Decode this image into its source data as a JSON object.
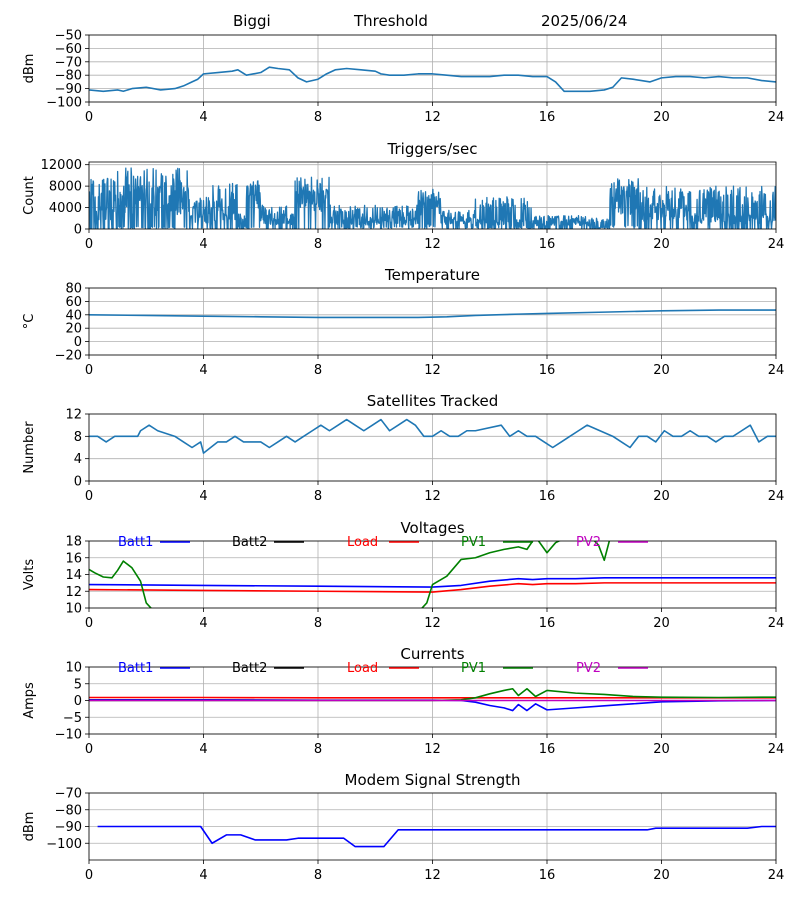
{
  "header": {
    "station": "Biggi",
    "label": "Threshold",
    "date": "2025/06/24"
  },
  "colors": {
    "default_line": "#1f77b4",
    "grid": "#b0b0b0",
    "batt1": "#0000ff",
    "batt2": "#000000",
    "load": "#ff0000",
    "pv1": "#008000",
    "pv2": "#bf00bf"
  },
  "chart_data": [
    {
      "id": "threshold",
      "type": "line",
      "title": "",
      "ylabel": "dBm",
      "xlim": [
        0,
        24
      ],
      "ylim": [
        -100,
        -50
      ],
      "xticks": [
        0,
        4,
        8,
        12,
        16,
        20,
        24
      ],
      "yticks": [
        -100,
        -90,
        -80,
        -70,
        -60,
        -50
      ],
      "ytick_labels": [
        "−100",
        "−90",
        "−80",
        "−70",
        "−60",
        "−50"
      ],
      "series": [
        {
          "color": "#1f77b4",
          "x": [
            0,
            0.5,
            1,
            1.2,
            1.5,
            2,
            2.5,
            3,
            3.3,
            3.6,
            3.8,
            4,
            4.5,
            5,
            5.2,
            5.5,
            6,
            6.3,
            6.6,
            7,
            7.3,
            7.6,
            8,
            8.3,
            8.6,
            9,
            9.5,
            10,
            10.2,
            10.5,
            11,
            11.5,
            12,
            12.5,
            13,
            13.5,
            14,
            14.5,
            15,
            15.5,
            16,
            16.3,
            16.6,
            17,
            17.5,
            18,
            18.3,
            18.6,
            19,
            19.3,
            19.6,
            20,
            20.5,
            21,
            21.5,
            22,
            22.5,
            23,
            23.5,
            24
          ],
          "values": [
            -91,
            -92,
            -91,
            -92,
            -90,
            -89,
            -91,
            -90,
            -88,
            -85,
            -83,
            -79,
            -78,
            -77,
            -76,
            -80,
            -78,
            -74,
            -75,
            -76,
            -82,
            -85,
            -83,
            -79,
            -76,
            -75,
            -76,
            -77,
            -79,
            -80,
            -80,
            -79,
            -79,
            -80,
            -81,
            -81,
            -81,
            -80,
            -80,
            -81,
            -81,
            -85,
            -92,
            -92,
            -92,
            -91,
            -89,
            -82,
            -83,
            -84,
            -85,
            -82,
            -81,
            -81,
            -82,
            -81,
            -82,
            -82,
            -84,
            -85
          ]
        }
      ]
    },
    {
      "id": "triggers",
      "type": "line",
      "title": "Triggers/sec",
      "ylabel": "Count",
      "xlim": [
        0,
        24
      ],
      "ylim": [
        0,
        12500
      ],
      "xticks": [
        0,
        4,
        8,
        12,
        16,
        20,
        24
      ],
      "yticks": [
        0,
        4000,
        8000,
        12000
      ],
      "ytick_labels": [
        "0",
        "4000",
        "8000",
        "12000"
      ],
      "series": [
        {
          "color": "#1f77b4",
          "segments": [
            {
              "x0": 0,
              "x1": 1,
              "lo": 200,
              "hi": 9500,
              "base": 3000
            },
            {
              "x0": 1,
              "x1": 3.5,
              "lo": 500,
              "hi": 11500,
              "base": 5000
            },
            {
              "x0": 3.5,
              "x1": 4.3,
              "lo": 300,
              "hi": 6500,
              "base": 2000
            },
            {
              "x0": 4.3,
              "x1": 5.2,
              "lo": 100,
              "hi": 8500,
              "base": 3000
            },
            {
              "x0": 5.2,
              "x1": 5.5,
              "lo": 100,
              "hi": 3000,
              "base": 500
            },
            {
              "x0": 5.5,
              "x1": 6.0,
              "lo": 400,
              "hi": 8500,
              "base": 6000
            },
            {
              "x0": 6.0,
              "x1": 7.2,
              "lo": 100,
              "hi": 4500,
              "base": 1500
            },
            {
              "x0": 7.2,
              "x1": 8.4,
              "lo": 200,
              "hi": 7500,
              "base": 6500
            },
            {
              "x0": 8.4,
              "x1": 11.5,
              "lo": 500,
              "hi": 4500,
              "base": 1500
            },
            {
              "x0": 11.5,
              "x1": 12.3,
              "lo": 1000,
              "hi": 7000,
              "base": 5000
            },
            {
              "x0": 12.3,
              "x1": 13.5,
              "lo": 500,
              "hi": 3500,
              "base": 1500
            },
            {
              "x0": 13.5,
              "x1": 15.5,
              "lo": 300,
              "hi": 6000,
              "base": 1200
            },
            {
              "x0": 15.5,
              "x1": 17.5,
              "lo": 100,
              "hi": 2500,
              "base": 1000
            },
            {
              "x0": 17.5,
              "x1": 18.2,
              "lo": 0,
              "hi": 2000,
              "base": 300
            },
            {
              "x0": 18.2,
              "x1": 19.2,
              "lo": 800,
              "hi": 10000,
              "base": 5500
            },
            {
              "x0": 19.2,
              "x1": 21,
              "lo": 300,
              "hi": 8000,
              "base": 3000
            },
            {
              "x0": 21,
              "x1": 24,
              "lo": 200,
              "hi": 8000,
              "base": 2000
            }
          ]
        }
      ]
    },
    {
      "id": "temperature",
      "type": "line",
      "title": "Temperature",
      "ylabel": "°C",
      "xlim": [
        0,
        24
      ],
      "ylim": [
        -20,
        80
      ],
      "xticks": [
        0,
        4,
        8,
        12,
        16,
        20,
        24
      ],
      "yticks": [
        -20,
        0,
        20,
        40,
        60,
        80
      ],
      "ytick_labels": [
        "−20",
        "0",
        "20",
        "40",
        "60",
        "80"
      ],
      "series": [
        {
          "color": "#1f77b4",
          "x": [
            0,
            2,
            4,
            6,
            8,
            10,
            11.5,
            12.5,
            13.5,
            15,
            16,
            18,
            20,
            22,
            24
          ],
          "values": [
            40,
            39,
            38,
            37,
            36,
            36,
            36,
            37,
            39,
            41,
            42,
            44,
            46,
            47,
            47
          ]
        }
      ]
    },
    {
      "id": "satellites",
      "type": "line",
      "title": "Satellites Tracked",
      "ylabel": "Number",
      "xlim": [
        0,
        24
      ],
      "ylim": [
        0,
        12
      ],
      "xticks": [
        0,
        4,
        8,
        12,
        16,
        20,
        24
      ],
      "yticks": [
        0,
        4,
        8,
        12
      ],
      "ytick_labels": [
        "0",
        "4",
        "8",
        "12"
      ],
      "series": [
        {
          "color": "#1f77b4",
          "x": [
            0,
            0.3,
            0.6,
            0.9,
            1.7,
            1.8,
            2.1,
            2.4,
            3.0,
            3.3,
            3.6,
            3.9,
            4.0,
            4.5,
            4.8,
            5.1,
            5.4,
            5.7,
            6.0,
            6.3,
            6.6,
            6.9,
            7.2,
            7.5,
            7.8,
            8.1,
            8.4,
            8.7,
            9.0,
            9.3,
            9.6,
            9.9,
            10.2,
            10.5,
            10.8,
            11.1,
            11.4,
            11.7,
            12.0,
            12.3,
            12.6,
            12.9,
            13.2,
            13.5,
            14.4,
            14.7,
            15.0,
            15.3,
            15.6,
            15.9,
            16.2,
            16.5,
            16.8,
            17.1,
            17.4,
            18.3,
            18.6,
            18.9,
            19.2,
            19.5,
            19.8,
            20.1,
            20.4,
            20.7,
            21.0,
            21.3,
            21.6,
            21.9,
            22.2,
            22.5,
            22.8,
            23.1,
            23.4,
            23.7,
            24
          ],
          "values": [
            8,
            8,
            7,
            8,
            8,
            9,
            10,
            9,
            8,
            7,
            6,
            7,
            5,
            7,
            7,
            8,
            7,
            7,
            7,
            6,
            7,
            8,
            7,
            8,
            9,
            10,
            9,
            10,
            11,
            10,
            9,
            10,
            11,
            9,
            10,
            11,
            10,
            8,
            8,
            9,
            8,
            8,
            9,
            9,
            10,
            8,
            9,
            8,
            8,
            7,
            6,
            7,
            8,
            9,
            10,
            8,
            7,
            6,
            8,
            8,
            7,
            9,
            8,
            8,
            9,
            8,
            8,
            7,
            8,
            8,
            9,
            10,
            7,
            8,
            8
          ]
        }
      ]
    },
    {
      "id": "voltages",
      "type": "line",
      "title": "Voltages",
      "ylabel": "Volts",
      "xlim": [
        0,
        24
      ],
      "ylim": [
        10,
        18
      ],
      "xticks": [
        0,
        4,
        8,
        12,
        16,
        20,
        24
      ],
      "yticks": [
        10,
        12,
        14,
        16,
        18
      ],
      "ytick_labels": [
        "10",
        "12",
        "14",
        "16",
        "18"
      ],
      "legend": [
        "Batt1",
        "Batt2",
        "Load",
        "PV1",
        "PV2"
      ],
      "legend_colors": [
        "#0000ff",
        "#000000",
        "#ff0000",
        "#008000",
        "#bf00bf"
      ],
      "series": [
        {
          "name": "Batt1",
          "color": "#0000ff",
          "x": [
            0,
            4,
            8,
            12,
            13,
            14,
            15,
            15.5,
            16,
            17,
            18,
            20,
            22,
            24
          ],
          "values": [
            12.8,
            12.7,
            12.6,
            12.5,
            12.7,
            13.2,
            13.5,
            13.4,
            13.5,
            13.5,
            13.6,
            13.6,
            13.6,
            13.6
          ]
        },
        {
          "name": "Load",
          "color": "#ff0000",
          "x": [
            0,
            4,
            8,
            12,
            13,
            14,
            15,
            15.5,
            16,
            17,
            18,
            20,
            22,
            24
          ],
          "values": [
            12.2,
            12.1,
            12.0,
            11.9,
            12.2,
            12.6,
            12.9,
            12.8,
            12.9,
            12.9,
            13.0,
            13.0,
            13.0,
            13.0
          ]
        },
        {
          "name": "PV1",
          "color": "#008000",
          "x": [
            0,
            0.2,
            0.5,
            0.8,
            1.0,
            1.2,
            1.5,
            1.8,
            2.0,
            2.3,
            11.5,
            11.8,
            12.0,
            12.5,
            13.0,
            13.5,
            14.0,
            14.5,
            15.0,
            15.3,
            15.6,
            16.0,
            16.3,
            16.6,
            17.0,
            17.5,
            17.8,
            18.0,
            18.2,
            18.6
          ],
          "values": [
            14.6,
            14.2,
            13.7,
            13.6,
            14.5,
            15.6,
            14.8,
            13.2,
            10.6,
            9.5,
            9.5,
            10.6,
            12.8,
            13.8,
            15.8,
            16.0,
            16.6,
            17.0,
            17.3,
            17.0,
            18.5,
            16.6,
            17.8,
            18.3,
            18.6,
            18.6,
            17.5,
            15.7,
            18.3,
            18.6
          ]
        }
      ]
    },
    {
      "id": "currents",
      "type": "line",
      "title": "Currents",
      "ylabel": "Amps",
      "xlim": [
        0,
        24
      ],
      "ylim": [
        -10,
        10
      ],
      "xticks": [
        0,
        4,
        8,
        12,
        16,
        20,
        24
      ],
      "yticks": [
        -10,
        -5,
        0,
        5,
        10
      ],
      "ytick_labels": [
        "−10",
        "−5",
        "0",
        "5",
        "10"
      ],
      "legend": [
        "Batt1",
        "Batt2",
        "Load",
        "PV1",
        "PV2"
      ],
      "legend_colors": [
        "#0000ff",
        "#000000",
        "#ff0000",
        "#008000",
        "#bf00bf"
      ],
      "series": [
        {
          "name": "Batt1",
          "color": "#0000ff",
          "x": [
            0,
            4,
            8,
            12,
            13,
            13.5,
            14,
            14.5,
            14.8,
            15.0,
            15.3,
            15.6,
            16,
            17,
            18,
            19,
            20,
            22,
            24
          ],
          "values": [
            0.2,
            0.2,
            0.1,
            0.1,
            0,
            -0.5,
            -1.5,
            -2.2,
            -3.0,
            -1.2,
            -3.0,
            -1.0,
            -2.8,
            -2.2,
            -1.6,
            -1.0,
            -0.4,
            -0.1,
            0
          ]
        },
        {
          "name": "Load",
          "color": "#ff0000",
          "x": [
            0,
            4,
            8,
            12,
            16,
            20,
            24
          ],
          "values": [
            0.9,
            0.9,
            0.8,
            0.8,
            0.8,
            0.8,
            0.8
          ]
        },
        {
          "name": "PV1",
          "color": "#008000",
          "x": [
            0,
            12,
            13,
            13.5,
            14,
            14.5,
            14.8,
            15.0,
            15.3,
            15.6,
            16,
            17,
            18,
            19,
            20,
            22,
            24
          ],
          "values": [
            0,
            0,
            0.2,
            0.8,
            2.0,
            3.0,
            3.5,
            1.5,
            3.5,
            1.2,
            3.0,
            2.2,
            1.8,
            1.2,
            1.0,
            0.9,
            1.0
          ]
        },
        {
          "name": "PV2",
          "color": "#bf00bf",
          "x": [
            0,
            24
          ],
          "values": [
            0,
            0
          ]
        }
      ]
    },
    {
      "id": "modem",
      "type": "line",
      "title": "Modem Signal Strength",
      "ylabel": "dBm",
      "xlim": [
        0,
        24
      ],
      "ylim": [
        -110,
        -70
      ],
      "xticks": [
        0,
        4,
        8,
        12,
        16,
        20,
        24
      ],
      "yticks": [
        -100,
        -90,
        -80,
        -70
      ],
      "ytick_labels": [
        "−100",
        "−90",
        "−80",
        "−70"
      ],
      "series": [
        {
          "color": "#0000ff",
          "x": [
            0.3,
            3.9,
            4.3,
            4.8,
            5.3,
            5.8,
            6.9,
            7.3,
            8.9,
            9.3,
            10.3,
            10.8,
            13,
            19.5,
            19.8,
            23,
            23.5,
            24
          ],
          "values": [
            -90,
            -90,
            -100,
            -95,
            -95,
            -98,
            -98,
            -97,
            -97,
            -102,
            -102,
            -92,
            -92,
            -92,
            -91,
            -91,
            -90,
            -90
          ]
        }
      ]
    }
  ]
}
